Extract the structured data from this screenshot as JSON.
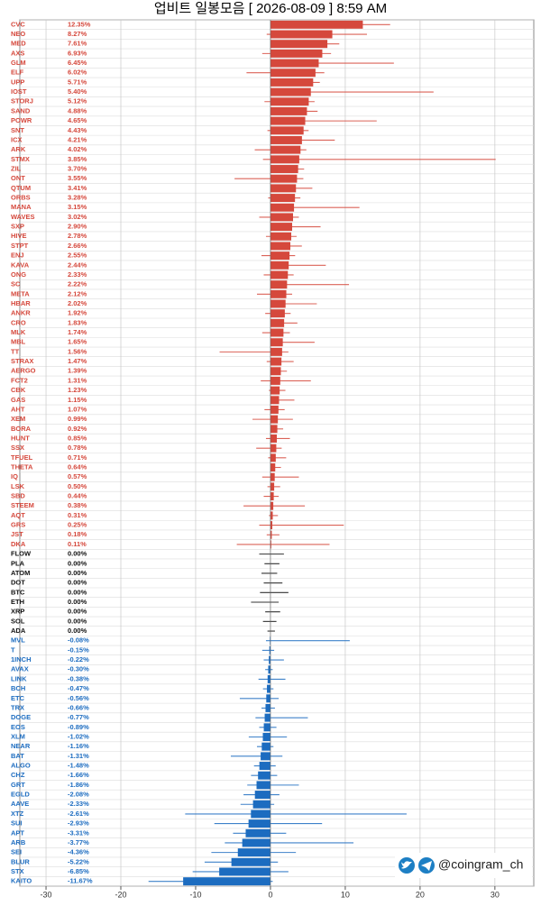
{
  "chart_data": {
    "type": "bar",
    "orientation": "horizontal",
    "title": "업비트 일봉모음 [ 2026-08-09 ]  8:59 AM",
    "categories": [
      "CVC",
      "NEO",
      "MED",
      "AXS",
      "GLM",
      "ELF",
      "UPP",
      "IOST",
      "STORJ",
      "SAND",
      "POWR",
      "SNT",
      "ICX",
      "ARK",
      "STMX",
      "ZIL",
      "ONT",
      "QTUM",
      "ORBS",
      "MANA",
      "WAVES",
      "SXP",
      "HIVE",
      "STPT",
      "ENJ",
      "KAVA",
      "ONG",
      "SC",
      "META",
      "HBAR",
      "ANKR",
      "CRO",
      "MLK",
      "MBL",
      "TT",
      "STRAX",
      "AERGO",
      "FCT2",
      "CBK",
      "GAS",
      "AHT",
      "XEM",
      "BORA",
      "HUNT",
      "SSX",
      "TFUEL",
      "THETA",
      "IQ",
      "LSK",
      "SBD",
      "STEEM",
      "AQT",
      "GRS",
      "JST",
      "DKA",
      "FLOW",
      "PLA",
      "ATOM",
      "DOT",
      "BTC",
      "ETH",
      "XRP",
      "SOL",
      "ADA",
      "MVL",
      "T",
      "1INCH",
      "AVAX",
      "LINK",
      "BCH",
      "ETC",
      "TRX",
      "DOGE",
      "EOS",
      "XLM",
      "NEAR",
      "BAT",
      "ALGO",
      "CHZ",
      "GRT",
      "EGLD",
      "AAVE",
      "XTZ",
      "SUI",
      "APT",
      "ARB",
      "SEI",
      "BLUR",
      "STX",
      "KAITO"
    ],
    "values": [
      12.35,
      8.27,
      7.61,
      6.93,
      6.45,
      6.02,
      5.71,
      5.4,
      5.12,
      4.88,
      4.65,
      4.43,
      4.21,
      4.02,
      3.85,
      3.7,
      3.55,
      3.41,
      3.28,
      3.15,
      3.02,
      2.9,
      2.78,
      2.66,
      2.55,
      2.44,
      2.33,
      2.22,
      2.12,
      2.02,
      1.92,
      1.83,
      1.74,
      1.65,
      1.56,
      1.47,
      1.39,
      1.31,
      1.23,
      1.15,
      1.07,
      0.99,
      0.92,
      0.85,
      0.78,
      0.71,
      0.64,
      0.57,
      0.5,
      0.44,
      0.38,
      0.31,
      0.25,
      0.18,
      0.11,
      0,
      0,
      0,
      0,
      0,
      0,
      0,
      0,
      0,
      -0.08,
      -0.15,
      -0.22,
      -0.3,
      -0.38,
      -0.47,
      -0.56,
      -0.66,
      -0.77,
      -0.89,
      -1.02,
      -1.16,
      -1.31,
      -1.48,
      -1.66,
      -1.86,
      -2.08,
      -2.33,
      -2.61,
      -2.93,
      -3.31,
      -3.77,
      -4.36,
      -5.22,
      -6.85,
      -11.67
    ],
    "value_labels": [
      "12.35%",
      "8.27%",
      "7.61%",
      "6.93%",
      "6.45%",
      "6.02%",
      "5.71%",
      "5.40%",
      "5.12%",
      "4.88%",
      "4.65%",
      "4.43%",
      "4.21%",
      "4.02%",
      "3.85%",
      "3.70%",
      "3.55%",
      "3.41%",
      "3.28%",
      "3.15%",
      "3.02%",
      "2.90%",
      "2.78%",
      "2.66%",
      "2.55%",
      "2.44%",
      "2.33%",
      "2.22%",
      "2.12%",
      "2.02%",
      "1.92%",
      "1.83%",
      "1.74%",
      "1.65%",
      "1.56%",
      "1.47%",
      "1.39%",
      "1.31%",
      "1.23%",
      "1.15%",
      "1.07%",
      "0.99%",
      "0.92%",
      "0.85%",
      "0.78%",
      "0.71%",
      "0.64%",
      "0.57%",
      "0.50%",
      "0.44%",
      "0.38%",
      "0.31%",
      "0.25%",
      "0.18%",
      "0.11%",
      "0.00%",
      "0.00%",
      "0.00%",
      "0.00%",
      "0.00%",
      "0.00%",
      "0.00%",
      "0.00%",
      "0.00%",
      "-0.08%",
      "-0.15%",
      "-0.22%",
      "-0.30%",
      "-0.38%",
      "-0.47%",
      "-0.56%",
      "-0.66%",
      "-0.77%",
      "-0.89%",
      "-1.02%",
      "-1.16%",
      "-1.31%",
      "-1.48%",
      "-1.66%",
      "-1.86%",
      "-2.08%",
      "-2.33%",
      "-2.61%",
      "-2.93%",
      "-3.31%",
      "-3.77%",
      "-4.36%",
      "-5.22%",
      "-6.85%",
      "-11.67%"
    ],
    "low": [
      0,
      -0.5,
      1.2,
      -1.1,
      0.8,
      -3.2,
      1.0,
      0.3,
      -0.8,
      1.1,
      0.2,
      -0.4,
      1.5,
      -2.1,
      -1.0,
      0.9,
      -4.8,
      0.6,
      -0.3,
      1.0,
      -1.5,
      0.4,
      -0.6,
      0.8,
      -1.2,
      0.1,
      -0.9,
      0.5,
      -1.8,
      0.2,
      -0.7,
      0.3,
      -1.1,
      0.1,
      -6.8,
      -0.5,
      0.2,
      -1.3,
      -0.2,
      0.0,
      -0.8,
      -2.4,
      0.1,
      -0.6,
      -1.9,
      -0.3,
      0.0,
      -1.1,
      -0.4,
      -0.9,
      -3.6,
      -0.2,
      -1.5,
      -0.5,
      -4.5,
      -1.5,
      -0.8,
      -1.2,
      -0.9,
      -1.4,
      -2.6,
      -0.7,
      -1.0,
      -0.4,
      -0.6,
      -1.1,
      -0.9,
      -0.7,
      -1.6,
      -1.0,
      -4.1,
      -1.2,
      -2.0,
      -1.5,
      -2.9,
      -1.8,
      -5.3,
      -2.2,
      -2.6,
      -3.1,
      -3.6,
      -4.0,
      -11.4,
      -7.5,
      -5.0,
      -6.1,
      -7.9,
      -8.8,
      -10.4,
      -16.3
    ],
    "high": [
      16.0,
      12.9,
      9.2,
      8.1,
      16.5,
      7.2,
      6.6,
      21.8,
      5.9,
      6.3,
      14.2,
      5.1,
      8.6,
      4.8,
      30.1,
      4.5,
      4.4,
      5.6,
      4.0,
      11.9,
      3.8,
      6.7,
      3.5,
      4.2,
      3.3,
      7.4,
      3.1,
      10.5,
      2.9,
      6.2,
      2.7,
      3.6,
      2.6,
      5.9,
      2.4,
      3.1,
      2.2,
      5.4,
      2.0,
      3.2,
      1.9,
      3.0,
      1.7,
      2.6,
      1.5,
      2.1,
      1.4,
      3.8,
      1.3,
      1.1,
      4.6,
      1.0,
      9.8,
      1.2,
      7.9,
      1.8,
      1.2,
      0.9,
      1.6,
      2.4,
      1.1,
      1.3,
      0.8,
      0.6,
      10.6,
      0.5,
      1.8,
      0.3,
      2.0,
      0.4,
      1.1,
      0.6,
      5.0,
      0.8,
      2.2,
      0.4,
      1.6,
      0.7,
      0.9,
      3.8,
      1.2,
      0.5,
      18.2,
      6.9,
      2.1,
      11.1,
      3.4,
      1.0,
      2.4,
      0.3
    ],
    "positive_color": "#d5483c",
    "negative_color": "#1c6cc0",
    "zero_color": "#111111",
    "xlim": [
      -33.5,
      35.2
    ],
    "xticks": [
      -30,
      -20,
      -10,
      0,
      10,
      20,
      30
    ],
    "grid": true
  },
  "credit": "@coingram_ch"
}
